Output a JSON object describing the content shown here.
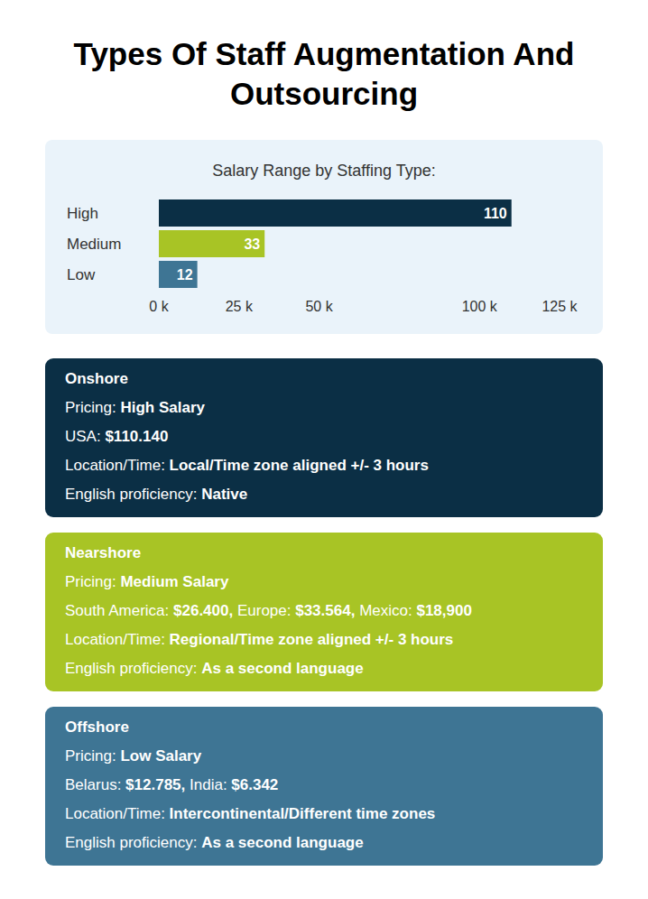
{
  "title": "Types Of Staff Augmentation And Outsourcing",
  "chart_data": {
    "type": "bar",
    "title": "Salary Range by Staffing Type:",
    "orientation": "horizontal",
    "categories": [
      "High",
      "Medium",
      "Low"
    ],
    "values": [
      110,
      33,
      12
    ],
    "colors": [
      "#0b2f45",
      "#a8c425",
      "#3e7594"
    ],
    "xlim": [
      0,
      125
    ],
    "xticks": [
      {
        "value": 0,
        "label": "0 k"
      },
      {
        "value": 25,
        "label": "25 k"
      },
      {
        "value": 50,
        "label": "50 k"
      },
      {
        "value": 100,
        "label": "100 k"
      },
      {
        "value": 125,
        "label": "125 k"
      }
    ],
    "data_labels": true,
    "grid": false
  },
  "cards": [
    {
      "name": "Onshore",
      "color": "#0b2f45",
      "lines": [
        [
          {
            "label": "Pricing:",
            "value": "High Salary"
          }
        ],
        [
          {
            "label": "USA:",
            "value": "$110.140"
          }
        ],
        [
          {
            "label": "Location/Time:",
            "value": "Local/Time zone aligned +/- 3 hours"
          }
        ],
        [
          {
            "label": "English proficiency:",
            "value": "Native"
          }
        ]
      ]
    },
    {
      "name": "Nearshore",
      "color": "#a8c425",
      "lines": [
        [
          {
            "label": "Pricing:",
            "value": "Medium Salary"
          }
        ],
        [
          {
            "label": "South America:",
            "value": "$26.400,"
          },
          {
            "label": "Europe:",
            "value": "$33.564,"
          },
          {
            "label": "Mexico:",
            "value": "$18,900"
          }
        ],
        [
          {
            "label": "Location/Time:",
            "value": "Regional/Time zone aligned +/- 3 hours"
          }
        ],
        [
          {
            "label": "English proficiency:",
            "value": "As a second language"
          }
        ]
      ]
    },
    {
      "name": "Offshore",
      "color": "#3e7594",
      "lines": [
        [
          {
            "label": "Pricing:",
            "value": "Low Salary"
          }
        ],
        [
          {
            "label": "Belarus:",
            "value": "$12.785,"
          },
          {
            "label": "India:",
            "value": "$6.342"
          }
        ],
        [
          {
            "label": "Location/Time:",
            "value": "Intercontinental/Different time zones"
          }
        ],
        [
          {
            "label": "English proficiency:",
            "value": "As a second language"
          }
        ]
      ]
    }
  ]
}
